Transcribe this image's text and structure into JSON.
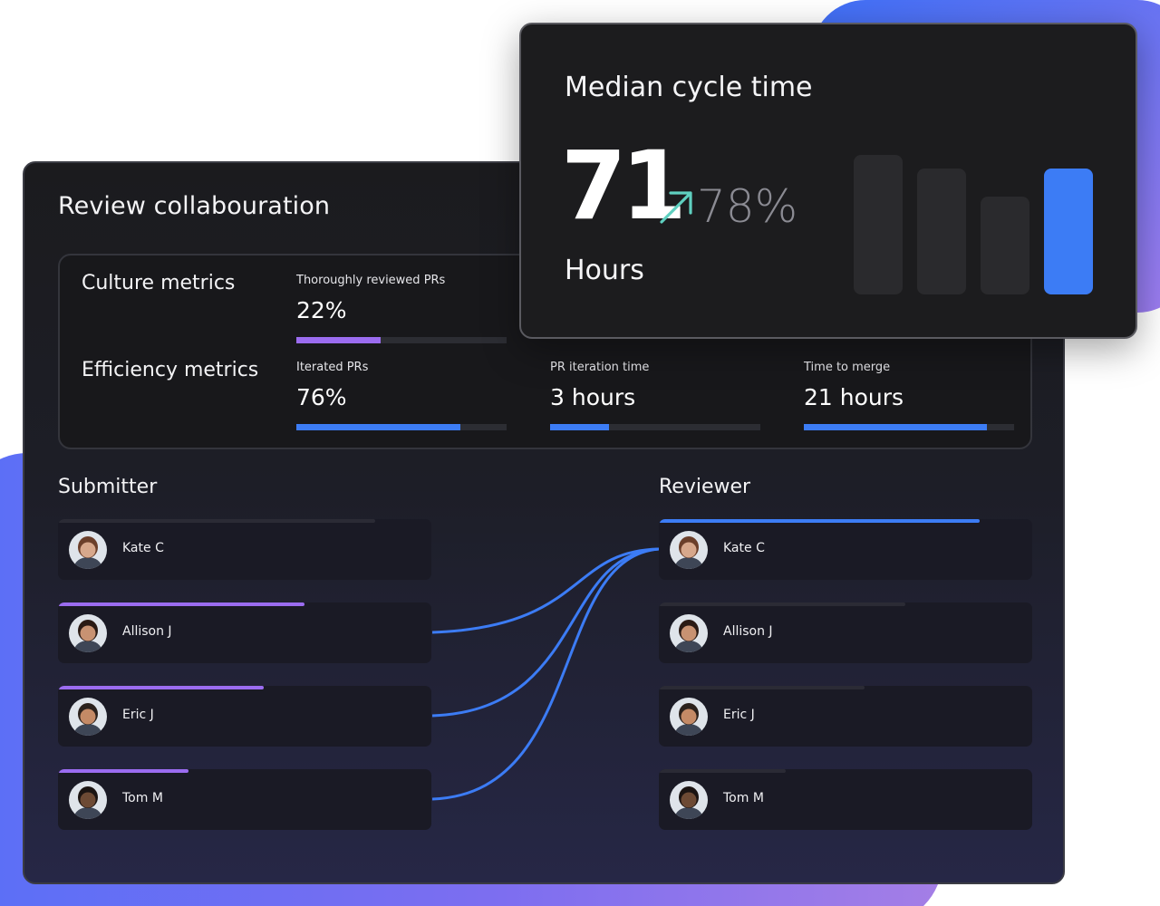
{
  "review": {
    "title": "Review collabouration",
    "culture": {
      "label": "Culture metrics",
      "metrics": [
        {
          "label": "Thoroughly reviewed PRs",
          "value": "22%",
          "progress": 0.4,
          "color": "#9b6cf0"
        }
      ]
    },
    "efficiency": {
      "label": "Efficiency metrics",
      "metrics": [
        {
          "label": "Iterated PRs",
          "value": "76%",
          "progress": 0.78,
          "color": "#3c7cf5"
        },
        {
          "label": "PR iteration time",
          "value": "3 hours",
          "progress": 0.28,
          "color": "#3c7cf5"
        },
        {
          "label": "Time to merge",
          "value": "21 hours",
          "progress": 0.87,
          "color": "#3c7cf5"
        }
      ]
    },
    "submitter": {
      "title": "Submitter",
      "people": [
        {
          "name": "Kate C",
          "avatar": "avatar-photo",
          "progress": 0.85,
          "color": "#2b2b35"
        },
        {
          "name": "Allison J",
          "avatar": "avatar-photo",
          "progress": 0.66,
          "color": "#9b6cf0"
        },
        {
          "name": "Eric J",
          "avatar": "avatar-photo",
          "progress": 0.55,
          "color": "#9b6cf0"
        },
        {
          "name": "Tom M",
          "avatar": "avatar-photo",
          "progress": 0.35,
          "color": "#9b6cf0"
        }
      ]
    },
    "reviewer": {
      "title": "Reviewer",
      "people": [
        {
          "name": "Kate C",
          "avatar": "avatar-photo",
          "progress": 0.86,
          "color": "#3c7cf5"
        },
        {
          "name": "Allison J",
          "avatar": "avatar-photo",
          "progress": 0.66,
          "color": "#2b2b35"
        },
        {
          "name": "Eric J",
          "avatar": "avatar-photo",
          "progress": 0.55,
          "color": "#2b2b35"
        },
        {
          "name": "Tom M",
          "avatar": "avatar-photo",
          "progress": 0.34,
          "color": "#2b2b35"
        }
      ]
    },
    "links": [
      {
        "from": "Allison J",
        "to": "Kate C"
      },
      {
        "from": "Eric J",
        "to": "Kate C"
      },
      {
        "from": "Tom M",
        "to": "Kate C"
      }
    ]
  },
  "cycle": {
    "title": "Median cycle time",
    "value": "71",
    "change": "78%",
    "change_icon": "arrow-up-right-icon",
    "unit": "Hours",
    "bars": [
      {
        "level": 1.0,
        "color": "#2a2a2d"
      },
      {
        "level": 0.9,
        "color": "#2a2a2d"
      },
      {
        "level": 0.7,
        "color": "#2a2a2d"
      },
      {
        "level": 0.9,
        "color": "#3c7cf5"
      }
    ]
  },
  "colors": {
    "accent_blue": "#3c7cf5",
    "accent_purple": "#9b6cf0",
    "teal_arrow": "#5fd0c0"
  }
}
